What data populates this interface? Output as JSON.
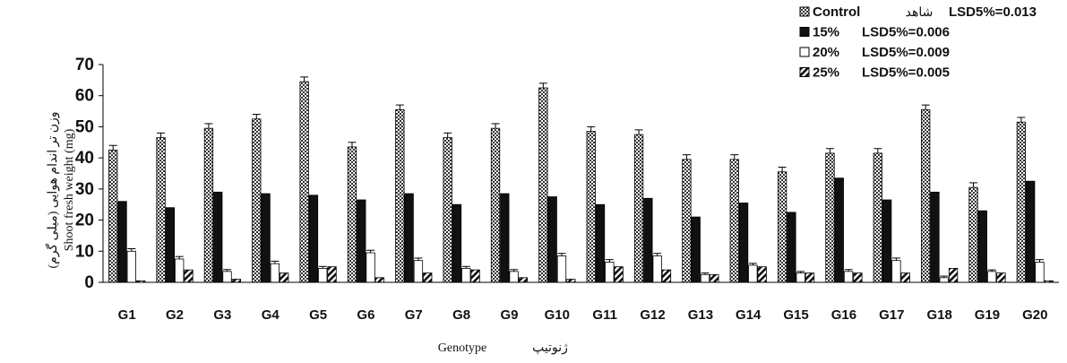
{
  "chart_data": {
    "type": "bar",
    "xlabel": "Genotype",
    "xlabel_fa": "ژنوتیپ",
    "ylabel": "Shoot fresh weight (mg)",
    "ylabel_fa": "وزن تر اندام هوایی (میلی گرم)",
    "ylim": [
      0,
      70
    ],
    "yticks": [
      "0",
      "10",
      "20",
      "30",
      "40",
      "50",
      "60",
      "70"
    ],
    "grid": false,
    "legend_position": "top-right",
    "categories": [
      "G1",
      "G2",
      "G3",
      "G4",
      "G5",
      "G6",
      "G7",
      "G8",
      "G9",
      "G10",
      "G11",
      "G12",
      "G13",
      "G14",
      "G15",
      "G16",
      "G17",
      "G18",
      "G19",
      "G20"
    ],
    "series": [
      {
        "name": "Control",
        "legend_label": "Control",
        "legend_extra": "شاهد",
        "legend_lsd": "LSD5%=0.013",
        "fill": "pattern-check",
        "values": [
          42.5,
          46.5,
          49.5,
          52.5,
          64.5,
          43.5,
          55.5,
          46.5,
          49.5,
          62.5,
          48.5,
          47.5,
          39.5,
          39.5,
          35.5,
          41.5,
          41.5,
          55.5,
          30.5,
          51.5
        ],
        "errors": [
          1.5,
          1.5,
          1.5,
          1.5,
          1.5,
          1.5,
          1.5,
          1.5,
          1.5,
          1.5,
          1.5,
          1.5,
          1.5,
          1.5,
          1.5,
          1.5,
          1.5,
          1.5,
          1.5,
          1.5
        ]
      },
      {
        "name": "15%",
        "legend_label": "15%",
        "legend_lsd": "LSD5%=0.006",
        "fill": "black",
        "values": [
          26,
          24,
          29,
          28.5,
          28,
          26.5,
          28.5,
          25,
          28.5,
          27.5,
          25,
          27,
          21,
          25.5,
          22.5,
          33.5,
          26.5,
          29,
          23,
          32.5
        ],
        "errors": [
          0,
          0,
          0,
          0,
          0,
          0,
          0,
          0,
          0,
          0,
          0,
          0,
          0,
          0,
          0,
          0,
          0,
          0,
          0,
          0
        ]
      },
      {
        "name": "20%",
        "legend_label": "20%",
        "legend_lsd": "LSD5%=0.009",
        "fill": "white",
        "values": [
          10,
          7.5,
          3.5,
          6,
          4.5,
          9.5,
          7,
          4.5,
          3.5,
          8.5,
          6.5,
          8.5,
          2.5,
          5.5,
          3,
          3.5,
          7,
          1.5,
          3.5,
          6.5
        ],
        "errors": [
          0.8,
          0.8,
          0.6,
          0.8,
          0.6,
          0.8,
          0.8,
          0.6,
          0.6,
          0.8,
          0.8,
          0.8,
          0.5,
          0.6,
          0.5,
          0.6,
          0.8,
          0.5,
          0.5,
          0.8
        ]
      },
      {
        "name": "25%",
        "legend_label": "25%",
        "legend_lsd": "LSD5%=0.005",
        "fill": "pattern-diagonal",
        "values": [
          0.5,
          4,
          1,
          3,
          5,
          1.5,
          3,
          4,
          1.5,
          1,
          5,
          4,
          2.5,
          5,
          3,
          3,
          3,
          4.5,
          3,
          0.5
        ],
        "errors": [
          0,
          0,
          0,
          0,
          0,
          0,
          0,
          0,
          0,
          0,
          0,
          0,
          0,
          0,
          0,
          0,
          0,
          0,
          0,
          0
        ]
      }
    ]
  }
}
